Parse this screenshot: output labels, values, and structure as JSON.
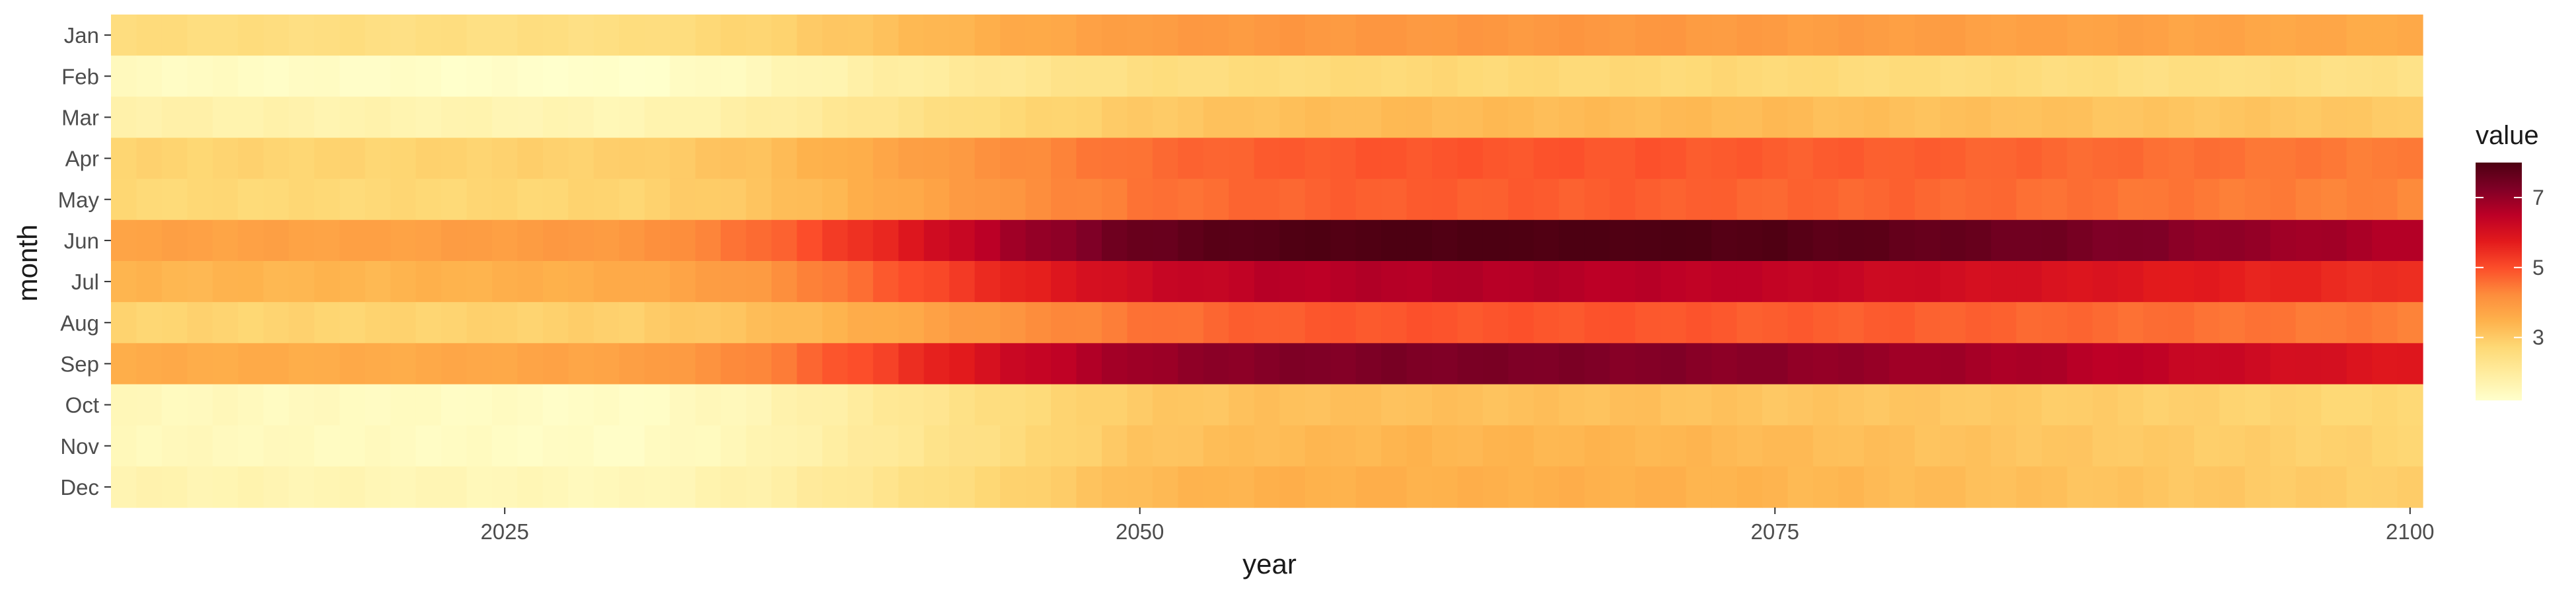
{
  "chart_data": {
    "type": "heatmap",
    "title": "",
    "xlabel": "year",
    "ylabel": "month",
    "x": {
      "start": 2010,
      "end": 2100,
      "ticks": [
        2025,
        2050,
        2075,
        2100
      ]
    },
    "months": [
      "Jan",
      "Feb",
      "Mar",
      "Apr",
      "May",
      "Jun",
      "Jul",
      "Aug",
      "Sep",
      "Oct",
      "Nov",
      "Dec"
    ],
    "anchor_years": [
      2010,
      2020,
      2030,
      2035,
      2040,
      2045,
      2050,
      2055,
      2060,
      2065,
      2070,
      2075,
      2080,
      2085,
      2090,
      2095,
      2100
    ],
    "anchor_values": {
      "Jan": [
        2.6,
        2.5,
        2.5,
        2.8,
        3.2,
        3.6,
        3.9,
        4.0,
        4.0,
        4.0,
        4.0,
        3.9,
        3.9,
        3.8,
        3.8,
        3.7,
        3.6
      ],
      "Feb": [
        1.4,
        1.3,
        1.2,
        1.5,
        1.9,
        2.2,
        2.5,
        2.6,
        2.7,
        2.7,
        2.7,
        2.7,
        2.6,
        2.6,
        2.5,
        2.5,
        2.4
      ],
      "Mar": [
        1.8,
        1.7,
        1.6,
        1.9,
        2.3,
        2.7,
        3.0,
        3.2,
        3.3,
        3.3,
        3.3,
        3.3,
        3.2,
        3.2,
        3.1,
        3.1,
        3.0
      ],
      "Apr": [
        2.8,
        2.8,
        2.9,
        3.2,
        3.7,
        4.2,
        4.6,
        4.8,
        4.9,
        4.9,
        4.9,
        4.8,
        4.8,
        4.7,
        4.6,
        4.5,
        4.4
      ],
      "May": [
        2.7,
        2.7,
        2.8,
        3.1,
        3.6,
        4.1,
        4.5,
        4.7,
        4.8,
        4.8,
        4.8,
        4.7,
        4.7,
        4.6,
        4.5,
        4.4,
        4.3
      ],
      "Jun": [
        3.8,
        3.8,
        4.0,
        4.6,
        5.6,
        6.8,
        7.6,
        7.9,
        8.0,
        8.0,
        8.0,
        7.9,
        7.7,
        7.5,
        7.2,
        6.9,
        6.6
      ],
      "Jul": [
        3.4,
        3.4,
        3.6,
        4.0,
        4.8,
        5.6,
        6.2,
        6.5,
        6.6,
        6.6,
        6.5,
        6.4,
        6.2,
        6.0,
        5.8,
        5.6,
        5.4
      ],
      "Aug": [
        2.8,
        2.8,
        2.9,
        3.2,
        3.6,
        4.1,
        4.5,
        4.8,
        4.9,
        4.9,
        4.9,
        4.8,
        4.8,
        4.7,
        4.6,
        4.5,
        4.4
      ],
      "Sep": [
        3.6,
        3.6,
        3.8,
        4.3,
        5.2,
        6.2,
        6.9,
        7.2,
        7.3,
        7.3,
        7.2,
        7.1,
        6.9,
        6.7,
        6.4,
        6.1,
        5.8
      ],
      "Oct": [
        1.5,
        1.4,
        1.3,
        1.6,
        2.1,
        2.6,
        3.0,
        3.2,
        3.2,
        3.2,
        3.2,
        3.1,
        3.1,
        3.0,
        2.9,
        2.8,
        2.7
      ],
      "Nov": [
        1.5,
        1.4,
        1.3,
        1.6,
        2.1,
        2.6,
        3.1,
        3.3,
        3.4,
        3.4,
        3.4,
        3.3,
        3.2,
        3.1,
        3.0,
        2.9,
        2.8
      ],
      "Dec": [
        1.7,
        1.6,
        1.5,
        1.8,
        2.3,
        2.8,
        3.3,
        3.5,
        3.5,
        3.5,
        3.5,
        3.4,
        3.3,
        3.2,
        3.1,
        3.0,
        2.9
      ]
    },
    "legend": {
      "title": "value",
      "ticks": [
        3,
        5,
        7
      ],
      "min": 1.2,
      "max": 8.0,
      "placement": "right",
      "colors": [
        "#ffffcc",
        "#ffeda0",
        "#fed976",
        "#feb24c",
        "#fd8d3c",
        "#fc4e2a",
        "#e31a1c",
        "#bd0026",
        "#800026",
        "#4d0012"
      ]
    },
    "grid": false
  }
}
